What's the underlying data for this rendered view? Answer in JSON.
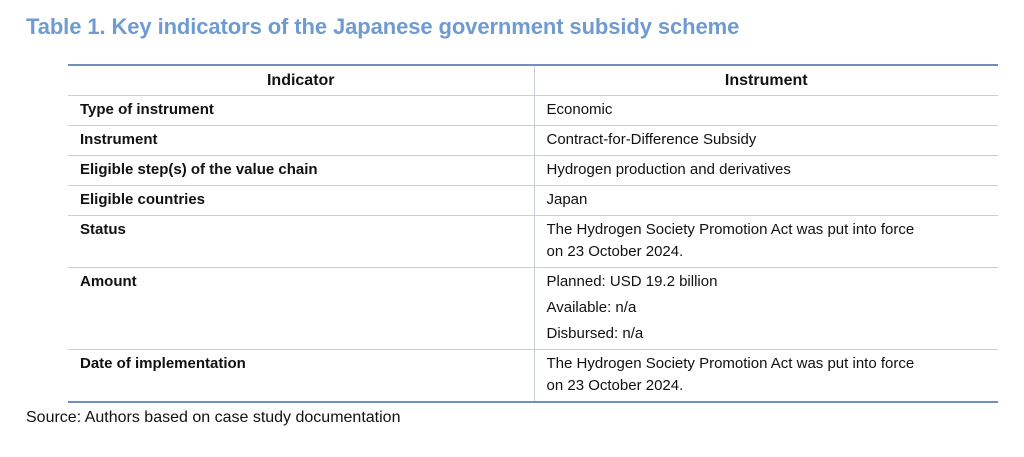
{
  "title": "Table 1. Key indicators of the Japanese government subsidy scheme",
  "table": {
    "headers": [
      "Indicator",
      "Instrument"
    ],
    "rows": [
      {
        "indicator": "Type of instrument",
        "value": [
          "Economic"
        ]
      },
      {
        "indicator": "Instrument",
        "value": [
          "Contract-for-Difference Subsidy"
        ]
      },
      {
        "indicator": "Eligible step(s) of the value chain",
        "value": [
          "Hydrogen production and derivatives"
        ]
      },
      {
        "indicator": "Eligible countries",
        "value": [
          "Japan"
        ]
      },
      {
        "indicator": "Status",
        "value": [
          "The Hydrogen Society Promotion Act was put into force",
          "on 23 October 2024."
        ]
      },
      {
        "indicator": "Amount",
        "value": [
          "Planned: USD 19.2 billion",
          "Available: n/a",
          "Disbursed: n/a"
        ]
      },
      {
        "indicator": "Date of implementation",
        "value": [
          "The Hydrogen Society Promotion Act was put into force",
          "on 23 October 2024."
        ]
      }
    ]
  },
  "source": "Source: Authors based on case study documentation",
  "colors": {
    "title": "#6f9bd1",
    "rule": "#6f8fbf",
    "grid": "#c9cfd8"
  }
}
